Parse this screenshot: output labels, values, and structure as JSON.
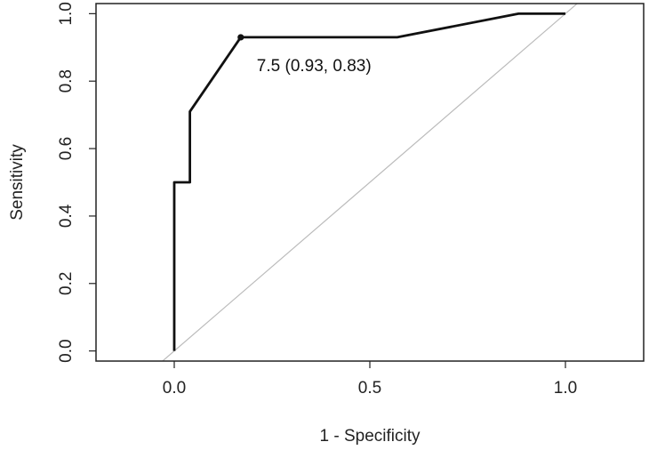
{
  "chart_data": {
    "type": "line",
    "title": "",
    "xlabel": "1 - Specificity",
    "ylabel": "Sensitivity",
    "xlim": [
      -0.2,
      1.2
    ],
    "ylim": [
      -0.03,
      1.03
    ],
    "x_ticks": [
      {
        "value": 0.0,
        "label": "0.0"
      },
      {
        "value": 0.5,
        "label": "0.5"
      },
      {
        "value": 1.0,
        "label": "1.0"
      }
    ],
    "y_ticks": [
      {
        "value": 0.0,
        "label": "0.0"
      },
      {
        "value": 0.2,
        "label": "0.2"
      },
      {
        "value": 0.4,
        "label": "0.4"
      },
      {
        "value": 0.6,
        "label": "0.6"
      },
      {
        "value": 0.8,
        "label": "0.8"
      },
      {
        "value": 1.0,
        "label": "1.0"
      }
    ],
    "grid": false,
    "series": [
      {
        "color": "#111111",
        "points": [
          {
            "x": 0.0,
            "y": 0.0
          },
          {
            "x": 0.0,
            "y": 0.5
          },
          {
            "x": 0.04,
            "y": 0.5
          },
          {
            "x": 0.04,
            "y": 0.71
          },
          {
            "x": 0.17,
            "y": 0.93
          },
          {
            "x": 0.57,
            "y": 0.93
          },
          {
            "x": 0.88,
            "y": 1.0
          },
          {
            "x": 1.0,
            "y": 1.0
          }
        ]
      }
    ],
    "reference_line": {
      "color": "#bbbbbb",
      "from": {
        "x": -0.1,
        "y": -0.1
      },
      "to": {
        "x": 1.1,
        "y": 1.1
      }
    },
    "highlight_point": {
      "x": 0.17,
      "y": 0.93,
      "label": "7.5 (0.93, 0.83)"
    }
  }
}
